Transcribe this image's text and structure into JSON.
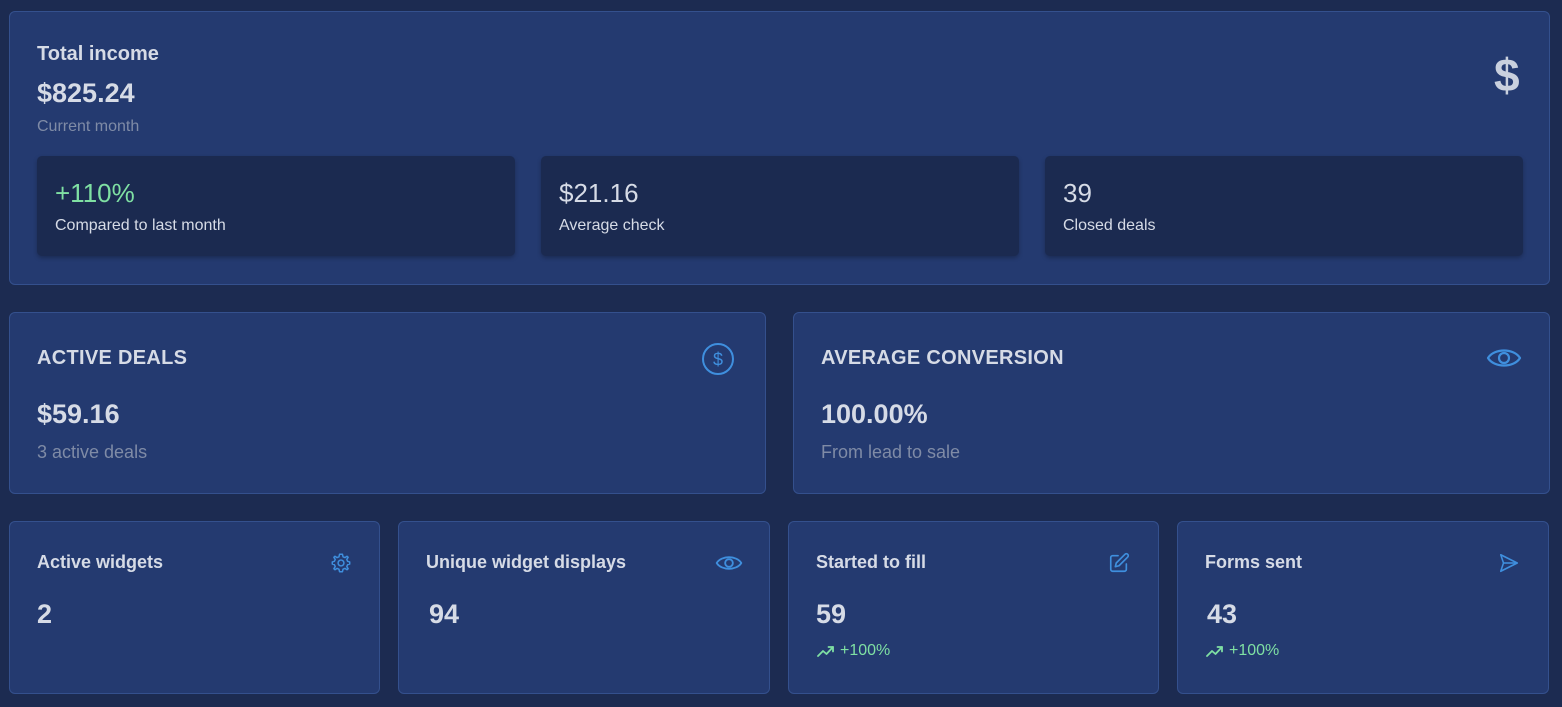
{
  "colors": {
    "background": "#1c2b51",
    "card": "#243a70",
    "inner_card": "#1b2a50",
    "accent_blue": "#3f8fde",
    "positive_green": "#7fe0a3",
    "muted_text": "#7f8ba6",
    "primary_text": "#d6dbe6"
  },
  "income": {
    "title": "Total income",
    "amount": "$825.24",
    "period": "Current month",
    "icon": "dollar-icon",
    "stats": [
      {
        "value": "+110%",
        "label": "Compared to last month",
        "positive": true
      },
      {
        "value": "$21.16",
        "label": "Average check"
      },
      {
        "value": "39",
        "label": "Closed deals"
      }
    ]
  },
  "active_deals": {
    "title": "ACTIVE DEALS",
    "amount": "$59.16",
    "subtitle": "3 active deals",
    "icon": "dollar-circle-icon"
  },
  "average_conversion": {
    "title": "AVERAGE CONVERSION",
    "value": "100.00%",
    "subtitle": "From lead to sale",
    "icon": "eye-icon"
  },
  "widgets": [
    {
      "title": "Active widgets",
      "value": "2",
      "icon": "gear-icon"
    },
    {
      "title": "Unique widget displays",
      "value": "94",
      "icon": "eye-icon"
    },
    {
      "title": "Started to fill",
      "value": "59",
      "icon": "edit-icon",
      "trend": "+100%"
    },
    {
      "title": "Forms sent",
      "value": "43",
      "icon": "send-icon",
      "trend": "+100%"
    }
  ]
}
